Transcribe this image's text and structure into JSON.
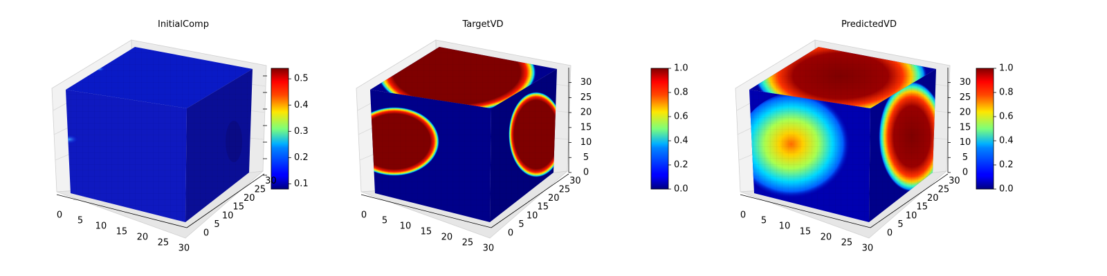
{
  "figure": {
    "panels": [
      {
        "title": "InitialComp"
      },
      {
        "title": "TargetVD"
      },
      {
        "title": "PredictedVD"
      }
    ]
  },
  "chart_data": [
    {
      "type": "heatmap",
      "subtype": "3d-voxel-cube",
      "title": "InitialComp",
      "colormap": "jet",
      "grid": true,
      "axes": {
        "x": {
          "ticks": [
            0,
            5,
            10,
            15,
            20,
            25,
            30
          ],
          "range": [
            0,
            32
          ]
        },
        "y": {
          "ticks": [
            0,
            5,
            10,
            15,
            20,
            25,
            30
          ],
          "range": [
            0,
            32
          ]
        },
        "z": {
          "ticks": [],
          "range": [
            0,
            32
          ]
        }
      },
      "colorbar": {
        "min": 0.08,
        "max": 0.54,
        "ticks": [
          "0.1",
          "0.2",
          "0.3",
          "0.4",
          "0.5"
        ],
        "tick_values": [
          0.1,
          0.2,
          0.3,
          0.4,
          0.5
        ]
      },
      "regions": [
        {
          "face": "top",
          "value": 0.1
        },
        {
          "face": "front",
          "value": 0.1
        },
        {
          "face": "side",
          "value": 0.08
        }
      ]
    },
    {
      "type": "heatmap",
      "subtype": "3d-voxel-cube",
      "title": "TargetVD",
      "colormap": "jet",
      "grid": true,
      "axes": {
        "x": {
          "ticks": [
            0,
            5,
            10,
            15,
            20,
            25,
            30
          ],
          "range": [
            0,
            32
          ]
        },
        "y": {
          "ticks": [
            0,
            5,
            10,
            15,
            20,
            25,
            30
          ],
          "range": [
            0,
            32
          ]
        },
        "z": {
          "ticks": [
            0,
            5,
            10,
            15,
            20,
            25,
            30
          ],
          "range": [
            0,
            32
          ]
        }
      },
      "colorbar": {
        "min": 0.0,
        "max": 1.0,
        "ticks": [
          "0.0",
          "0.2",
          "0.4",
          "0.6",
          "0.8",
          "1.0"
        ],
        "tick_values": [
          0,
          0.2,
          0.4,
          0.6,
          0.8,
          1.0
        ]
      },
      "regions": [
        {
          "face": "top",
          "value": 1.0
        },
        {
          "face": "front",
          "value": 1.0
        },
        {
          "face": "side",
          "value": 1.0
        },
        {
          "face": "background",
          "value": 0.0
        }
      ]
    },
    {
      "type": "heatmap",
      "subtype": "3d-voxel-cube",
      "title": "PredictedVD",
      "colormap": "jet",
      "grid": true,
      "axes": {
        "x": {
          "ticks": [
            0,
            5,
            10,
            15,
            20,
            25,
            30
          ],
          "range": [
            0,
            32
          ]
        },
        "y": {
          "ticks": [
            0,
            5,
            10,
            15,
            20,
            25,
            30
          ],
          "range": [
            0,
            32
          ]
        },
        "z": {
          "ticks": [
            0,
            5,
            10,
            15,
            20,
            25,
            30
          ],
          "range": [
            0,
            32
          ]
        }
      },
      "colorbar": {
        "min": 0.0,
        "max": 1.0,
        "ticks": [
          "0.0",
          "0.2",
          "0.4",
          "0.6",
          "0.8",
          "1.0"
        ],
        "tick_values": [
          0,
          0.2,
          0.4,
          0.6,
          0.8,
          1.0
        ]
      },
      "regions": [
        {
          "face": "top",
          "value": 0.95
        },
        {
          "face": "front",
          "value": 0.8
        },
        {
          "face": "side",
          "value": 0.9
        },
        {
          "face": "background",
          "value": 0.05
        }
      ]
    }
  ]
}
